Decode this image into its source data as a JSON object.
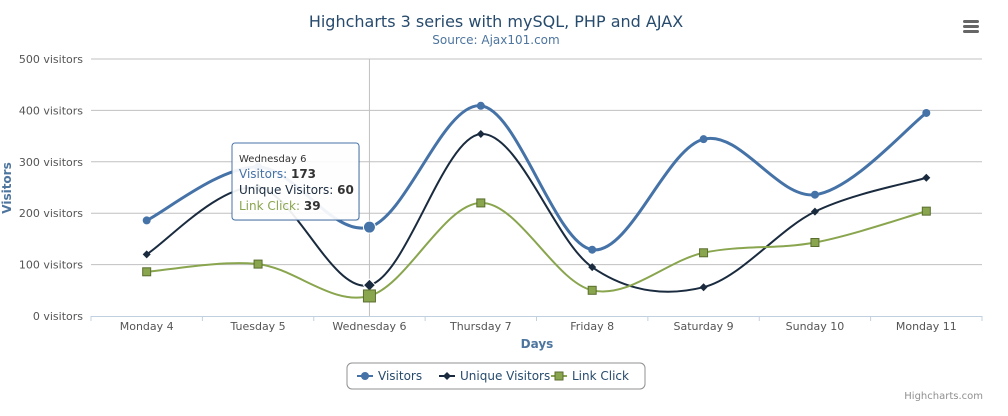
{
  "chart_data": {
    "type": "line",
    "title": "Highcharts 3 series with mySQL, PHP and AJAX",
    "subtitle": "Source: Ajax101.com",
    "xlabel": "Days",
    "ylabel": "Visitors",
    "ylim": [
      0,
      500
    ],
    "y_ticks": [
      "0 visitors",
      "100 visitors",
      "200 visitors",
      "300 visitors",
      "400 visitors",
      "500 visitors"
    ],
    "categories": [
      "Monday 4",
      "Tuesday 5",
      "Wednesday 6",
      "Thursday 7",
      "Friday 8",
      "Saturday 9",
      "Sunday 10",
      "Monday 11"
    ],
    "grid": true,
    "legend_position": "bottom-center",
    "series": [
      {
        "name": "Visitors",
        "color": "#4572a7",
        "marker": "circle",
        "values": [
          186,
          290,
          173,
          409,
          129,
          344,
          236,
          395
        ]
      },
      {
        "name": "Unique Visitors",
        "color": "#1a2b3f",
        "marker": "diamond",
        "values": [
          120,
          250,
          60,
          354,
          95,
          56,
          203,
          269
        ]
      },
      {
        "name": "Link Click",
        "color": "#89a54e",
        "marker": "square",
        "values": [
          86,
          101,
          39,
          220,
          50,
          123,
          143,
          204
        ]
      }
    ],
    "tooltip": {
      "header": "Wednesday 6",
      "category_index": 2,
      "rows": [
        {
          "label": "Visitors:",
          "value": "173",
          "color": "#4572a7"
        },
        {
          "label": "Unique Visitors:",
          "value": "60",
          "color": "#1a2b3f"
        },
        {
          "label": "Link Click:",
          "value": "39",
          "color": "#89a54e"
        }
      ]
    },
    "credits": "Highcharts.com"
  },
  "toolbar": {
    "menu_icon": "hamburger-menu-icon"
  }
}
